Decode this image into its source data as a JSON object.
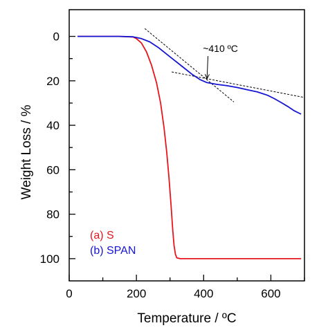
{
  "chart_data": {
    "type": "line",
    "title": "",
    "xlabel": "Temperature / ºC",
    "ylabel": "Weight Loss / %",
    "xlim": [
      0,
      700
    ],
    "ylim": [
      -12,
      110
    ],
    "y_inverted": true,
    "x_ticks": [
      0,
      200,
      400,
      600
    ],
    "x_ticklabels": [
      "0",
      "200",
      "400",
      "600"
    ],
    "y_ticks": [
      0,
      20,
      40,
      60,
      80,
      100
    ],
    "y_ticklabels": [
      "0",
      "20",
      "40",
      "60",
      "80",
      "100"
    ],
    "grid": false,
    "legend": {
      "placement": "bottom-left",
      "entries": [
        "(a) S",
        "(b) SPAN"
      ]
    },
    "series": [
      {
        "name": "(a) S",
        "color": "#e8141b",
        "x": [
          25,
          100,
          150,
          190,
          200,
          215,
          230,
          245,
          260,
          272,
          282,
          290,
          297,
          303,
          308,
          312,
          316,
          320,
          330,
          360,
          450,
          550,
          690
        ],
        "y": [
          0,
          0,
          0,
          0.3,
          1,
          3,
          7,
          13,
          21,
          30,
          41,
          52,
          64,
          76,
          87,
          94,
          98,
          99.6,
          100,
          100,
          100,
          100,
          100
        ]
      },
      {
        "name": "(b) SPAN",
        "color": "#1414d2",
        "x": [
          25,
          100,
          150,
          190,
          215,
          240,
          265,
          290,
          315,
          340,
          365,
          390,
          410,
          440,
          470,
          500,
          530,
          560,
          590,
          610,
          630,
          650,
          670,
          690
        ],
        "y": [
          0,
          0,
          0,
          0.2,
          1,
          2.5,
          5,
          8,
          11,
          14,
          17,
          19.5,
          20.8,
          21.6,
          22.2,
          23,
          24,
          25,
          26.5,
          28,
          29.7,
          31.5,
          33.5,
          35
        ]
      }
    ],
    "annotations": [
      {
        "text": "~410 ºC",
        "points_to": [
          410,
          19
        ],
        "text_at": [
          450,
          7
        ]
      }
    ],
    "tangent_lines": [
      {
        "from": [
          225,
          -3.5
        ],
        "to": [
          490,
          29.5
        ]
      },
      {
        "from": [
          305,
          16
        ],
        "to": [
          700,
          27.5
        ]
      }
    ]
  }
}
